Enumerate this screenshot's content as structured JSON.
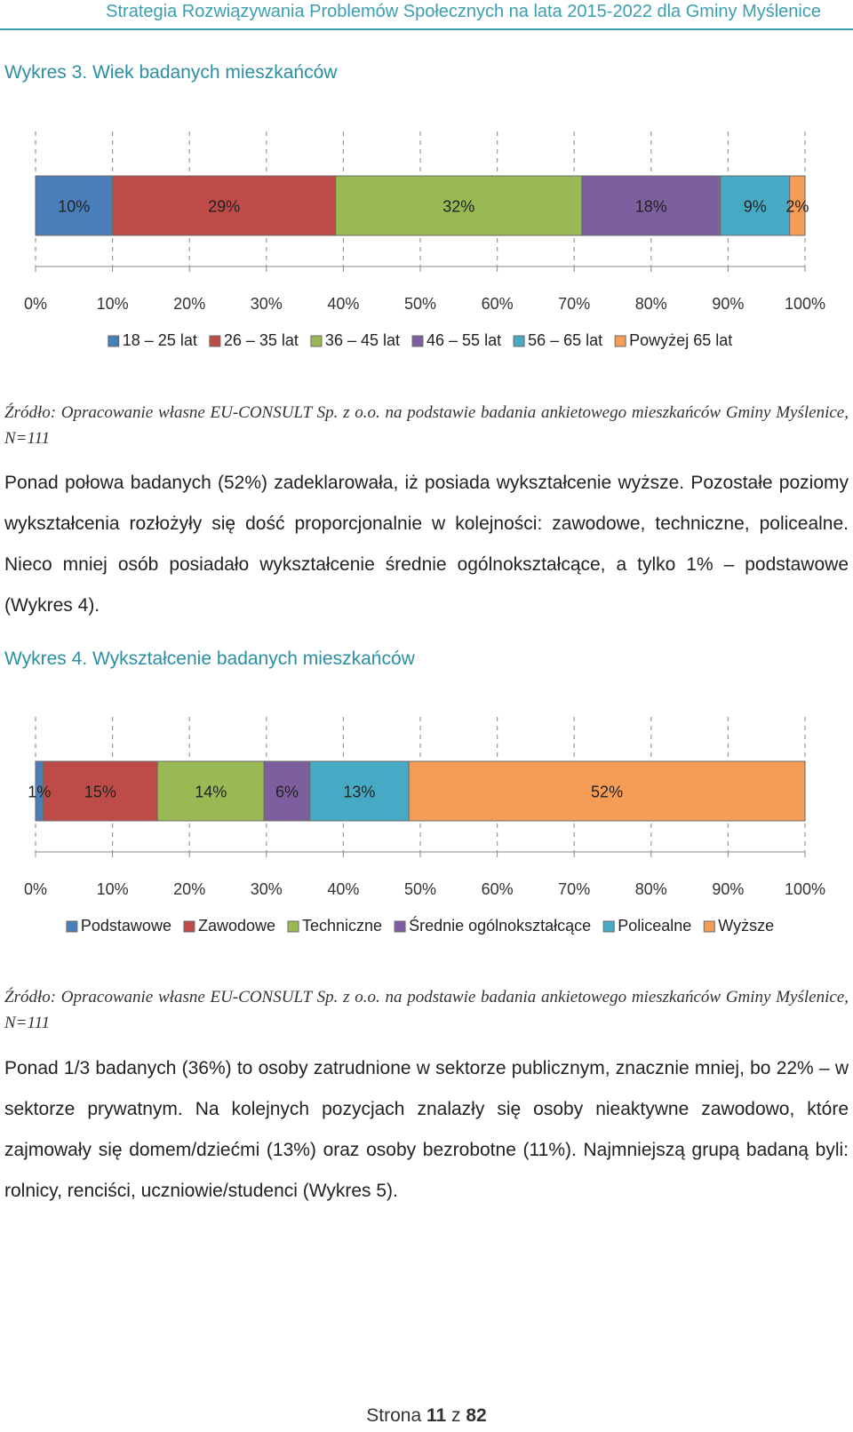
{
  "header": {
    "text": "Strategia Rozwiązywania Problemów Społecznych na lata 2015-2022 dla Gminy Myślenice"
  },
  "chart1": {
    "title": "Wykres 3. Wiek badanych mieszkańców",
    "source": "Źródło: Opracowanie własne EU-CONSULT Sp. z o.o. na podstawie badania ankietowego mieszkańców Gminy Myślenice, N=111"
  },
  "paragraph1": "Ponad połowa badanych (52%) zadeklarowała, iż posiada wykształcenie wyższe. Pozostałe poziomy wykształcenia rozłożyły się dość proporcjonalnie w kolejności: zawodowe, techniczne, policealne. Nieco mniej osób posiadało wykształcenie średnie ogólnokształcące, a tylko 1% – podstawowe (Wykres 4).",
  "chart2": {
    "title": "Wykres 4. Wykształcenie badanych mieszkańców",
    "source": "Źródło: Opracowanie własne EU-CONSULT Sp. z o.o. na podstawie badania ankietowego mieszkańców Gminy Myślenice, N=111"
  },
  "paragraph2": "Ponad 1/3 badanych (36%) to osoby zatrudnione w sektorze publicznym, znacznie mniej, bo 22% – w sektorze prywatnym. Na kolejnych pozycjach znalazły się osoby nieaktywne zawodowo, które zajmowały się domem/dziećmi (13%) oraz osoby bezrobotne (11%). Najmniejszą grupą badaną byli: rolnicy, renciści, uczniowie/studenci (Wykres 5).",
  "footer": {
    "prefix": "Strona",
    "page": "11",
    "sep": "z",
    "total": "82"
  },
  "chart_data": [
    {
      "type": "bar",
      "orientation": "horizontal",
      "stacked": "100%",
      "title": "Wykres 3. Wiek badanych mieszkańców",
      "xlim": [
        0,
        100
      ],
      "xticks": [
        "0%",
        "10%",
        "20%",
        "30%",
        "40%",
        "50%",
        "60%",
        "70%",
        "80%",
        "90%",
        "100%"
      ],
      "grid": true,
      "legend": "bottom",
      "series": [
        {
          "name": "18 – 25 lat",
          "value": 10,
          "label": "10%",
          "color": "#4a7ebb"
        },
        {
          "name": "26 – 35 lat",
          "value": 29,
          "label": "29%",
          "color": "#be4b48"
        },
        {
          "name": "36 – 45 lat",
          "value": 32,
          "label": "32%",
          "color": "#98b954"
        },
        {
          "name": "46 – 55 lat",
          "value": 18,
          "label": "18%",
          "color": "#7d5fa0"
        },
        {
          "name": "56 – 65 lat",
          "value": 9,
          "label": "9%",
          "color": "#46aac5"
        },
        {
          "name": "Powyżej 65 lat",
          "value": 2,
          "label": "2%",
          "color": "#f59d56"
        }
      ]
    },
    {
      "type": "bar",
      "orientation": "horizontal",
      "stacked": "100%",
      "title": "Wykres 4. Wykształcenie badanych mieszkańców",
      "xlim": [
        0,
        100
      ],
      "xticks": [
        "0%",
        "10%",
        "20%",
        "30%",
        "40%",
        "50%",
        "60%",
        "70%",
        "80%",
        "90%",
        "100%"
      ],
      "grid": true,
      "legend": "bottom",
      "series": [
        {
          "name": "Podstawowe",
          "value": 1,
          "label": "1%",
          "color": "#4a7ebb"
        },
        {
          "name": "Zawodowe",
          "value": 15,
          "label": "15%",
          "color": "#be4b48"
        },
        {
          "name": "Techniczne",
          "value": 14,
          "label": "14%",
          "color": "#98b954"
        },
        {
          "name": "Średnie ogólnokształcące",
          "value": 6,
          "label": "6%",
          "color": "#7d5fa0"
        },
        {
          "name": "Policealne",
          "value": 13,
          "label": "13%",
          "color": "#46aac5"
        },
        {
          "name": "Wyższe",
          "value": 52,
          "label": "52%",
          "color": "#f59d56"
        }
      ]
    }
  ]
}
